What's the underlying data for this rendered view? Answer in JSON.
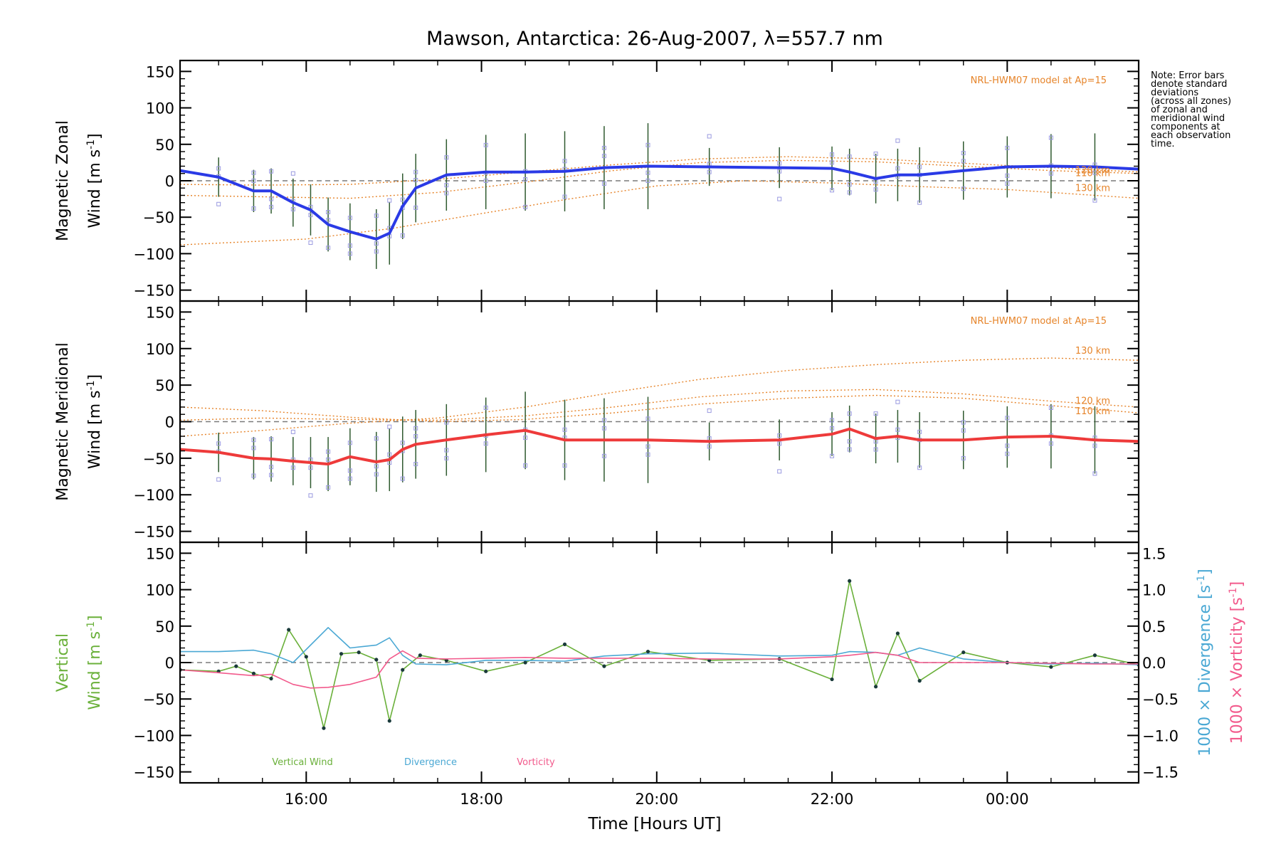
{
  "colors": {
    "zonal": "#2a3ae6",
    "meridional": "#ee3a3a",
    "vertical": "#6ab03a",
    "divergence": "#4aa8d4",
    "vorticity": "#f25a8c",
    "model": "#e6842a",
    "zero_line": "#7a7a7a",
    "scatter": "#9a9ae0",
    "error_bar": "#2f5a2f"
  },
  "chart_data": {
    "type": "line",
    "title": "Mawson, Antarctica: 26-Aug-2007, λ=557.7 nm",
    "xlabel": "Time [Hours UT]",
    "x_unit": "hours UT (continuing past 24)",
    "xlim": [
      14.56,
      25.5
    ],
    "x_ticks": [
      {
        "value": 16,
        "label": "16:00"
      },
      {
        "value": 18,
        "label": "18:00"
      },
      {
        "value": 20,
        "label": "20:00"
      },
      {
        "value": 22,
        "label": "22:00"
      },
      {
        "value": 24,
        "label": "00:00"
      }
    ],
    "note": [
      "Note: Error bars",
      "denote standard",
      "deviations",
      "(across all zones)",
      "of zonal and",
      "meridional wind",
      "components at",
      "each observation",
      "time."
    ],
    "panels": [
      {
        "id": "zonal",
        "ylabel_line1": "Magnetic Zonal",
        "ylabel_line2": "Wind [m s",
        "ylabel_sup": "-1",
        "ylabel_close": "]",
        "ylim": [
          -165,
          165
        ],
        "y_ticks": [
          150,
          100,
          50,
          0,
          -50,
          -100,
          -150
        ],
        "model_label": "NRL-HWM07 model at Ap=15",
        "model_altitudes": [
          "130 km",
          "120 km",
          "110 km"
        ],
        "model_curves": [
          {
            "name": "130 km",
            "x": [
              14.56,
              16.0,
              17.0,
              18.0,
              19.0,
              20.0,
              21.0,
              22.0,
              23.0,
              24.0,
              25.0,
              25.5
            ],
            "y": [
              -88,
              -80,
              -65,
              -45,
              -25,
              -7,
              0,
              -3,
              -8,
              -12,
              -20,
              -24
            ]
          },
          {
            "name": "120 km",
            "x": [
              14.56,
              15.5,
              16.5,
              17.5,
              18.5,
              19.5,
              20.5,
              21.5,
              22.5,
              23.5,
              24.5,
              25.5
            ],
            "y": [
              -20,
              -22,
              -24,
              -16,
              -2,
              14,
              25,
              28,
              26,
              20,
              14,
              10
            ]
          },
          {
            "name": "110 km",
            "x": [
              14.56,
              15.5,
              16.5,
              17.5,
              18.5,
              19.5,
              20.5,
              21.5,
              22.5,
              23.5,
              24.5,
              25.5
            ],
            "y": [
              -5,
              -6,
              -5,
              2,
              12,
              22,
              30,
              33,
              30,
              24,
              18,
              12
            ]
          }
        ],
        "series": [
          {
            "name": "Zonal wind",
            "x": [
              14.56,
              15.0,
              15.4,
              15.6,
              15.85,
              16.05,
              16.25,
              16.5,
              16.8,
              16.95,
              17.1,
              17.25,
              17.6,
              18.05,
              18.5,
              18.95,
              19.4,
              19.9,
              20.6,
              21.4,
              22.0,
              22.2,
              22.5,
              22.75,
              23.0,
              23.5,
              24.0,
              24.5,
              25.0,
              25.5
            ],
            "y": [
              14,
              5,
              -14,
              -14,
              -30,
              -40,
              -60,
              -70,
              -80,
              -72,
              -35,
              -10,
              8,
              12,
              12,
              13,
              18,
              20,
              19,
              18,
              17,
              12,
              3,
              8,
              8,
              14,
              19,
              20,
              19,
              16
            ]
          }
        ]
      },
      {
        "id": "meridional",
        "ylabel_line1": "Magnetic Meridional",
        "ylabel_line2": "Wind [m s",
        "ylabel_sup": "-1",
        "ylabel_close": "]",
        "ylim": [
          -165,
          165
        ],
        "y_ticks": [
          150,
          100,
          50,
          0,
          -50,
          -100,
          -150
        ],
        "model_label": "NRL-HWM07 model at Ap=15",
        "model_altitudes": [
          "130 km",
          "120 km",
          "110 km"
        ],
        "model_curves": [
          {
            "name": "130 km",
            "x": [
              14.56,
              15.5,
              16.5,
              17.5,
              18.5,
              19.5,
              20.5,
              21.5,
              22.5,
              23.5,
              24.5,
              25.5
            ],
            "y": [
              -20,
              -12,
              -2,
              5,
              20,
              40,
              58,
              70,
              78,
              84,
              87,
              84
            ]
          },
          {
            "name": "120 km",
            "x": [
              14.56,
              15.5,
              16.5,
              17.5,
              18.5,
              19.5,
              20.5,
              21.5,
              22.5,
              23.5,
              24.5,
              25.5
            ],
            "y": [
              2,
              5,
              3,
              2,
              8,
              20,
              34,
              42,
              44,
              38,
              28,
              20
            ]
          },
          {
            "name": "110 km",
            "x": [
              14.56,
              15.5,
              16.5,
              17.5,
              18.5,
              19.5,
              20.5,
              21.5,
              22.5,
              23.5,
              24.5,
              25.5
            ],
            "y": [
              20,
              15,
              6,
              0,
              3,
              12,
              24,
              32,
              36,
              32,
              22,
              12
            ]
          }
        ],
        "series": [
          {
            "name": "Meridional wind",
            "x": [
              14.56,
              15.0,
              15.4,
              15.6,
              15.85,
              16.05,
              16.25,
              16.5,
              16.8,
              16.95,
              17.1,
              17.25,
              17.6,
              18.05,
              18.5,
              18.95,
              19.4,
              19.9,
              20.6,
              21.4,
              22.0,
              22.2,
              22.5,
              22.75,
              23.0,
              23.5,
              24.0,
              24.5,
              25.0,
              25.5
            ],
            "y": [
              -38,
              -42,
              -50,
              -51,
              -54,
              -56,
              -58,
              -48,
              -55,
              -52,
              -38,
              -31,
              -25,
              -18,
              -12,
              -25,
              -25,
              -25,
              -27,
              -25,
              -17,
              -10,
              -23,
              -20,
              -25,
              -25,
              -21,
              -20,
              -25,
              -27
            ]
          }
        ]
      },
      {
        "id": "vertical",
        "ylabel_line1": "Vertical",
        "ylabel_line2": "Wind [m s",
        "ylabel_sup": "-1",
        "ylabel_close": "]",
        "ylim": [
          -165,
          165
        ],
        "y_ticks": [
          150,
          100,
          50,
          0,
          -50,
          -100,
          -150
        ],
        "y2_ticks": [
          "1.5",
          "1.0",
          "0.5",
          "0.0",
          "−0.5",
          "−1.0",
          "−1.5"
        ],
        "y2_ticks_values": [
          1.5,
          1.0,
          0.5,
          0.0,
          -0.5,
          -1.0,
          -1.5
        ],
        "y2lim": [
          -1.65,
          1.65
        ],
        "y2_label_divergence": "1000 × Divergence [s",
        "y2_label_vorticity": "1000 × Vorticity [s",
        "y2_label_sup": "-1",
        "y2_label_close": "]",
        "legend": [
          "Vertical Wind",
          "Divergence",
          "Vorticity"
        ],
        "series": [
          {
            "name": "Vertical Wind",
            "axis": "left",
            "x": [
              14.56,
              15.0,
              15.2,
              15.4,
              15.6,
              15.8,
              16.0,
              16.2,
              16.4,
              16.6,
              16.8,
              16.95,
              17.1,
              17.3,
              17.6,
              18.05,
              18.5,
              18.95,
              19.4,
              19.9,
              20.6,
              21.4,
              22.0,
              22.2,
              22.5,
              22.75,
              23.0,
              23.5,
              24.0,
              24.5,
              25.0,
              25.5
            ],
            "y": [
              -10,
              -12,
              -5,
              -15,
              -22,
              45,
              8,
              -90,
              12,
              14,
              4,
              -80,
              -10,
              10,
              3,
              -12,
              0,
              25,
              -5,
              15,
              3,
              5,
              -23,
              112,
              -33,
              40,
              -25,
              14,
              0,
              -6,
              10,
              -3
            ]
          },
          {
            "name": "Divergence",
            "axis": "right",
            "x": [
              14.56,
              15.0,
              15.4,
              15.6,
              15.85,
              16.25,
              16.5,
              16.8,
              16.95,
              17.1,
              17.25,
              17.6,
              18.05,
              18.5,
              18.95,
              19.4,
              19.9,
              20.6,
              21.4,
              22.0,
              22.2,
              22.5,
              22.75,
              23.0,
              23.5,
              24.0,
              24.5,
              25.0,
              25.5
            ],
            "y": [
              0.15,
              0.15,
              0.17,
              0.12,
              0.0,
              0.48,
              0.2,
              0.24,
              0.34,
              0.1,
              -0.02,
              -0.03,
              0.03,
              0.03,
              0.02,
              0.09,
              0.12,
              0.13,
              0.09,
              0.1,
              0.15,
              0.14,
              0.1,
              0.2,
              0.05,
              0.0,
              -0.02,
              -0.01,
              -0.03
            ]
          },
          {
            "name": "Vorticity",
            "axis": "right",
            "x": [
              14.56,
              15.0,
              15.4,
              15.6,
              15.85,
              16.05,
              16.25,
              16.5,
              16.8,
              16.95,
              17.1,
              17.25,
              17.6,
              18.05,
              18.5,
              18.95,
              19.4,
              19.9,
              20.6,
              21.4,
              22.0,
              22.2,
              22.5,
              22.75,
              23.0,
              23.5,
              24.0,
              24.5,
              25.0,
              25.5
            ],
            "y": [
              -0.1,
              -0.14,
              -0.18,
              -0.16,
              -0.3,
              -0.35,
              -0.34,
              -0.3,
              -0.2,
              0.05,
              0.16,
              0.06,
              0.05,
              0.06,
              0.07,
              0.06,
              0.06,
              0.06,
              0.05,
              0.05,
              0.08,
              0.1,
              0.14,
              0.1,
              0.0,
              0.0,
              0.0,
              -0.01,
              -0.02,
              -0.02
            ]
          }
        ]
      }
    ]
  }
}
